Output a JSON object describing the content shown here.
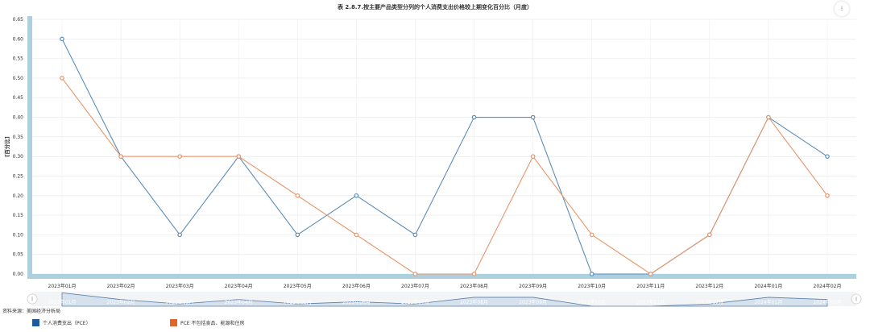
{
  "chart_data": {
    "type": "line",
    "title": "表 2.8.7.按主要产品类型分列的个人消费支出价格较上期变化百分比（月度）",
    "ylabel": "[百分比]",
    "xlabel": "",
    "ylim": [
      0,
      0.65
    ],
    "ytick_step": 0.05,
    "grid": true,
    "categories": [
      "2023年01月",
      "2023年02月",
      "2023年03月",
      "2023年04月",
      "2023年05月",
      "2023年06月",
      "2023年07月",
      "2023年08月",
      "2023年09月",
      "2023年10月",
      "2023年11月",
      "2023年12月",
      "2024年01月",
      "2024年02月"
    ],
    "series": [
      {
        "name": "个人消费支出（PCE）",
        "color": "#5b8db8",
        "values": [
          0.6,
          0.3,
          0.1,
          0.3,
          0.1,
          0.2,
          0.1,
          0.4,
          0.4,
          0.0,
          0.0,
          0.1,
          0.4,
          0.3
        ]
      },
      {
        "name": "PCE 不包括食品、能源和住房",
        "color": "#e8966b",
        "values": [
          0.5,
          0.3,
          0.3,
          0.3,
          0.2,
          0.1,
          0.0,
          0.0,
          0.3,
          0.1,
          0.0,
          0.1,
          0.4,
          0.2
        ]
      }
    ],
    "legend_position": "bottom-left"
  },
  "source_text": "资料来源：美国经济分析局",
  "legend_swatch_colors": [
    "#1f5a9e",
    "#e0662a"
  ],
  "download_icon": "download-icon"
}
